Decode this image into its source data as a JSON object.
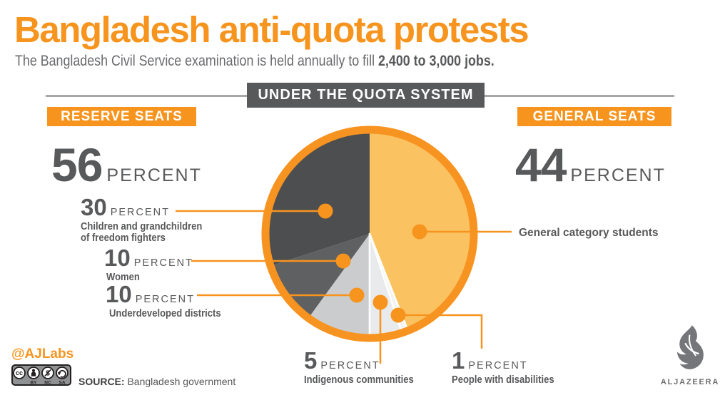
{
  "header": {
    "title": "Bangladesh anti-quota protests",
    "subtitle_normal": "The Bangladesh Civil Service examination is held annually to fill ",
    "subtitle_bold": "2,400 to 3,000 jobs."
  },
  "banner": {
    "label": "UNDER THE QUOTA SYSTEM"
  },
  "reserve_panel": {
    "badge": "RESERVE SEATS",
    "number": "56",
    "unit": "PERCENT"
  },
  "general_panel": {
    "badge": "GENERAL SEATS",
    "number": "44",
    "unit": "PERCENT"
  },
  "callouts": {
    "children": {
      "number": "30",
      "unit": "PERCENT",
      "caption_line1": "Children and grandchildren",
      "caption_line2": "of freedom fighters"
    },
    "women": {
      "number": "10",
      "unit": "PERCENT",
      "caption": "Women"
    },
    "underdeveloped": {
      "number": "10",
      "unit": "PERCENT",
      "caption": "Underdeveloped districts"
    },
    "indigenous": {
      "number": "5",
      "unit": "PERCENT",
      "caption": "Indigenous communities"
    },
    "disabilities": {
      "number": "1",
      "unit": "PERCENT",
      "caption": "People with disabilities"
    },
    "general": {
      "caption": "General category students"
    }
  },
  "chart_data": {
    "type": "pie",
    "title": "UNDER THE QUOTA SYSTEM",
    "unit": "percent",
    "direction": "clockwise",
    "start_angle_deg": 0,
    "legend_position": "callouts",
    "ring_color": "#F79421",
    "slices": [
      {
        "id": "general",
        "label": "General category students",
        "value": 44,
        "color": "#FBC262"
      },
      {
        "id": "disabilities",
        "label": "People with disabilities",
        "value": 1,
        "color": "#F3F3F4"
      },
      {
        "id": "indigenous",
        "label": "Indigenous communities",
        "value": 5,
        "color": "#E9EAEB"
      },
      {
        "id": "underdeveloped",
        "label": "Underdeveloped districts",
        "value": 10,
        "color": "#CBCCCE"
      },
      {
        "id": "women",
        "label": "Women",
        "value": 10,
        "color": "#5F6062"
      },
      {
        "id": "children",
        "label": "Children and grandchildren of freedom fighters",
        "value": 30,
        "color": "#4D4E50"
      }
    ],
    "groups": {
      "reserve_percent": 56,
      "general_percent": 44
    }
  },
  "footer": {
    "handle": "@AJLabs",
    "cc": {
      "cc_label": "cc",
      "labels": [
        "BY",
        "NC",
        "SA"
      ]
    },
    "source_label": "SOURCE:",
    "source_value": "Bangladesh government",
    "logo_text": "ALJAZEERA"
  },
  "colors": {
    "accent_orange": "#F7941E",
    "pie_fill_orange": "#FBC262",
    "dark_gray": "#58595B",
    "slice_dark": "#4D4E50"
  }
}
